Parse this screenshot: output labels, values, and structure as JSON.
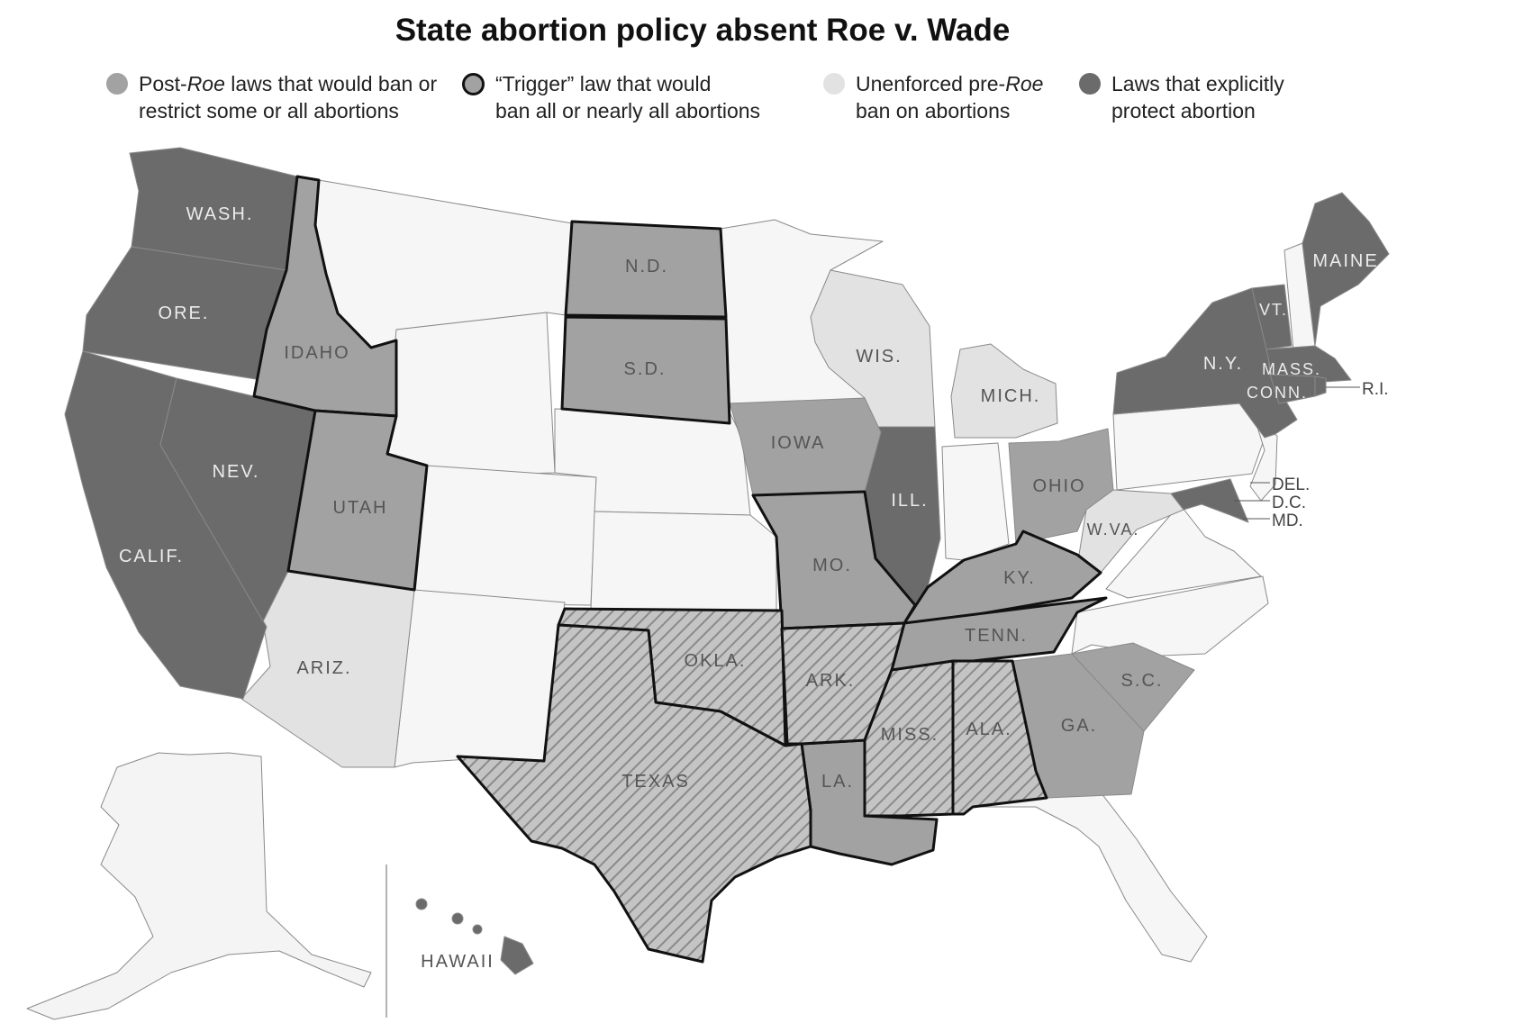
{
  "title": "State abortion policy absent Roe v. Wade",
  "colors": {
    "post_roe": "#a2a2a2",
    "protect": "#6b6b6b",
    "unenforced": "#e2e2e2",
    "none": "#f6f6f6",
    "border": "#111111"
  },
  "legend": [
    {
      "key": "post_roe",
      "text_a": "Post-",
      "text_i": "Roe",
      "text_b": " laws that would ban or",
      "text_c": "restrict some or all abortions"
    },
    {
      "key": "trigger",
      "text_a": "“Trigger” law that would",
      "text_i": "",
      "text_b": "",
      "text_c": "ban all or nearly all abortions"
    },
    {
      "key": "unenforced",
      "text_a": "Unenforced pre-",
      "text_i": "Roe",
      "text_b": "",
      "text_c": "ban on abortions"
    },
    {
      "key": "protect",
      "text_a": "Laws that explicitly",
      "text_i": "",
      "text_b": "",
      "text_c": "protect abortion"
    }
  ],
  "states": {
    "wash": "WASH.",
    "ore": "ORE.",
    "calif": "CALIF.",
    "nev": "NEV.",
    "idaho": "IDAHO",
    "utah": "UTAH",
    "ariz": "ARIZ.",
    "nd": "N.D.",
    "sd": "S.D.",
    "iowa": "IOWA",
    "wis": "WIS.",
    "mich": "MICH.",
    "ill": "ILL.",
    "ohio": "OHIO",
    "mo": "MO.",
    "ky": "KY.",
    "wva": "W.VA.",
    "tenn": "TENN.",
    "okla": "OKLA.",
    "ark": "ARK.",
    "texas": "TEXAS",
    "la": "LA.",
    "miss": "MISS.",
    "ala": "ALA.",
    "ga": "GA.",
    "sc": "S.C.",
    "ny": "N.Y.",
    "vt": "VT.",
    "maine": "MAINE",
    "mass": "MASS.",
    "conn": "CONN.",
    "ri": "R.I.",
    "del": "DEL.",
    "dc": "D.C.",
    "md": "MD.",
    "hawaii": "HAWAII"
  }
}
